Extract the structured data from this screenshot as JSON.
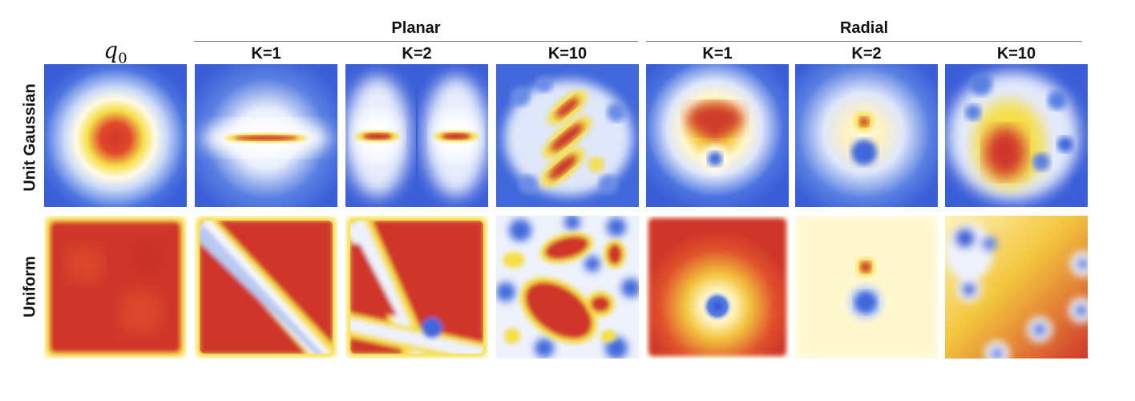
{
  "groups": {
    "planar": "Planar",
    "radial": "Radial"
  },
  "columns": {
    "q0": {
      "base": "q",
      "sub": "0"
    },
    "planar": [
      "K=1",
      "K=2",
      "K=10"
    ],
    "radial": [
      "K=1",
      "K=2",
      "K=10"
    ]
  },
  "rows": {
    "gaussian": "Unit Gaussian",
    "uniform": "Uniform"
  },
  "colors": {
    "low": "#3b63dd",
    "mid": "#fffbe0",
    "high": "#d0362b"
  }
}
